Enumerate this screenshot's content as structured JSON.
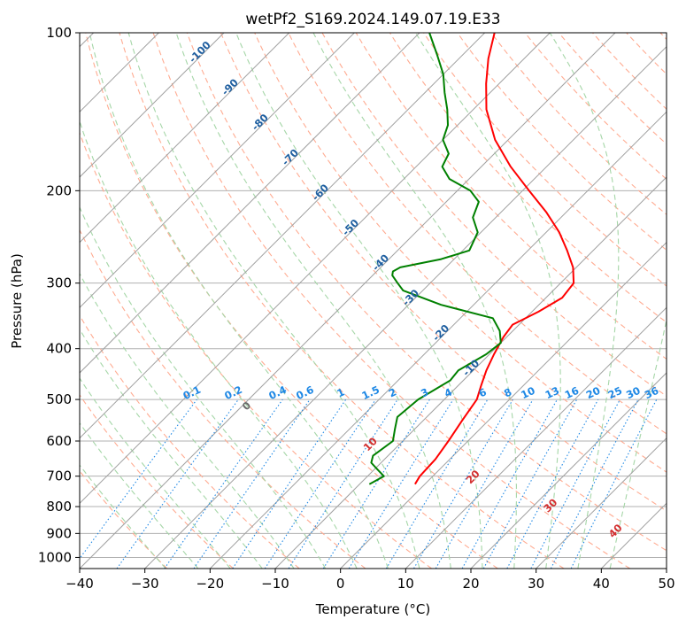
{
  "chart_data": {
    "type": "line",
    "title": "wetPf2_S169.2024.149.07.19.E33",
    "xlabel": "Temperature (°C)",
    "ylabel": "Pressure (hPa)",
    "xlim": [
      -40,
      50
    ],
    "ylim": [
      1050,
      100
    ],
    "y_scale": "log",
    "x_ticks": [
      "−40",
      "−30",
      "−20",
      "−10",
      "0",
      "10",
      "20",
      "30",
      "40",
      "50"
    ],
    "y_ticks": [
      "100",
      "200",
      "300",
      "400",
      "500",
      "600",
      "700",
      "800",
      "900",
      "1000"
    ],
    "grid": true,
    "colors": {
      "temperature": "#ff0000",
      "dewpoint": "#008000",
      "dry_adiabat": "#ffab91",
      "moist_adiabat": "#a5d6a7",
      "mixing_ratio": "#1e88e5",
      "isotherm": "#999999"
    },
    "series": [
      {
        "color_key": "temperature",
        "pressure": [
          725,
          700,
          650,
          600,
          550,
          500,
          470,
          440,
          410,
          380,
          360,
          340,
          320,
          300,
          280,
          260,
          240,
          220,
          200,
          180,
          160,
          140,
          125,
          112,
          100
        ],
        "temperature": [
          -1.5,
          -2.0,
          -2.2,
          -3.0,
          -4.0,
          -5.0,
          -6.5,
          -8.0,
          -9.3,
          -10.5,
          -11.0,
          -9.0,
          -7.5,
          -8.0,
          -10.5,
          -14.0,
          -18.0,
          -23.0,
          -29.0,
          -35.5,
          -42.0,
          -48.0,
          -52.0,
          -55.5,
          -58.5
        ]
      },
      {
        "color_key": "dewpoint",
        "pressure": [
          725,
          700,
          680,
          660,
          640,
          600,
          570,
          540,
          500,
          460,
          440,
          410,
          390,
          370,
          350,
          330,
          310,
          300,
          290,
          285,
          280,
          270,
          260,
          240,
          225,
          210,
          200,
          190,
          180,
          170,
          160,
          150,
          140,
          130,
          120,
          110,
          100
        ],
        "temperature": [
          -8.5,
          -7.5,
          -9.5,
          -11.5,
          -12.3,
          -11.5,
          -13.0,
          -14.5,
          -14.0,
          -12.0,
          -12.3,
          -10.5,
          -10.0,
          -12.0,
          -15.0,
          -25.0,
          -33.0,
          -35.0,
          -37.0,
          -37.5,
          -37.0,
          -32.0,
          -29.0,
          -30.5,
          -33.5,
          -35.0,
          -38.0,
          -43.0,
          -46.0,
          -47.0,
          -50.0,
          -51.5,
          -54.0,
          -57.0,
          -60.0,
          -64.0,
          -68.5
        ]
      }
    ],
    "annotations": {
      "isotherm_labels": [
        "-100",
        "-90",
        "-80",
        "-70",
        "-60",
        "-50",
        "-40",
        "-30",
        "-20",
        "-10"
      ],
      "mixing_ratio_labels": [
        "0.1",
        "0.2",
        "0.4",
        "0.6",
        "1",
        "1.5",
        "2",
        "3",
        "4",
        "6",
        "8",
        "10",
        "13",
        "16",
        "20",
        "25",
        "30",
        "36"
      ],
      "moist_adiabat_labels": [
        "0",
        "10",
        "20",
        "30",
        "40"
      ]
    }
  }
}
